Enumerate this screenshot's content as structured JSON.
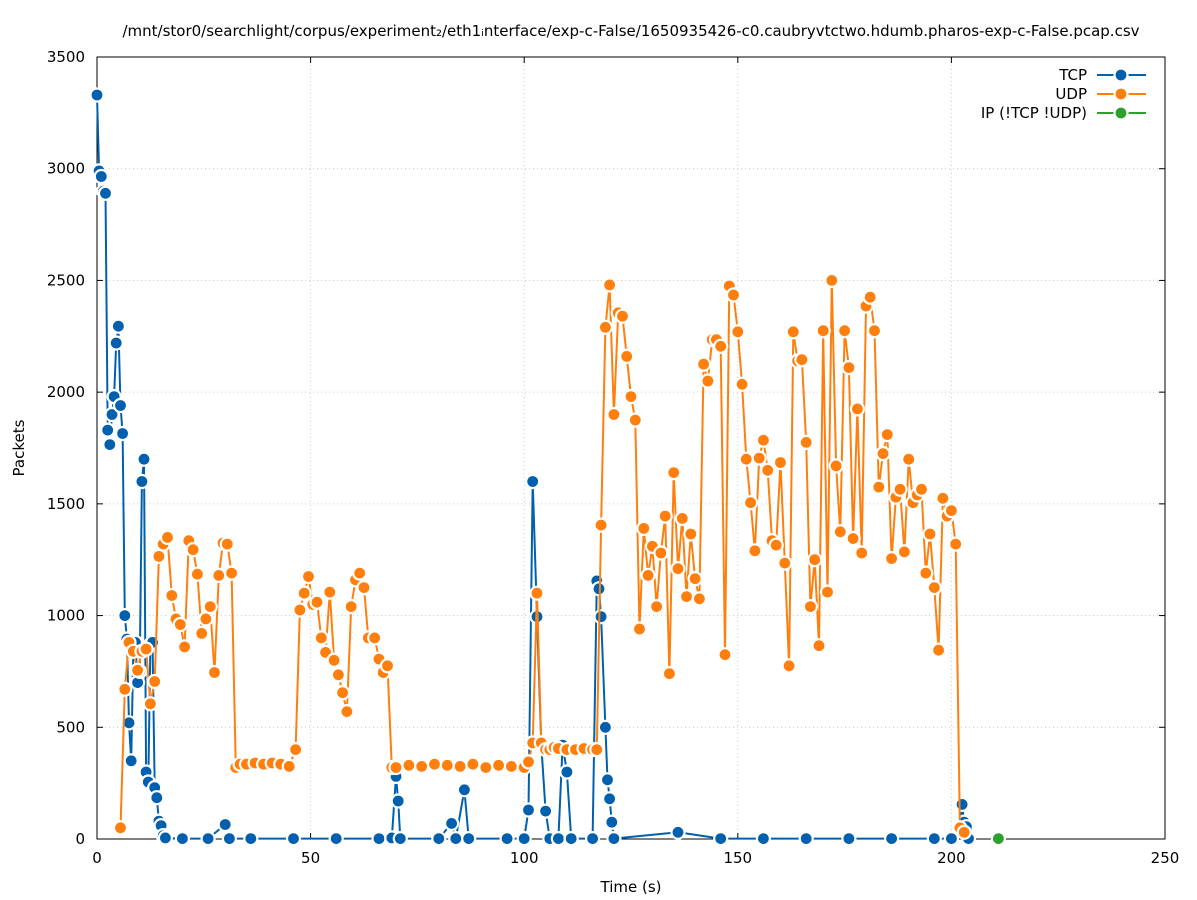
{
  "chart_data": {
    "type": "line",
    "title": "/mnt/stor0/searchlight/corpus/experiment₂/eth1ᵢnterface/exp-c-False/1650935426-c0.caubryvtctwo.hdumb.pharos-exp-c-False.pcap.csv",
    "xlabel": "Time (s)",
    "ylabel": "Packets",
    "xlim": [
      0,
      250
    ],
    "ylim": [
      0,
      3500
    ],
    "x_ticks": [
      "0",
      "50",
      "100",
      "150",
      "200",
      "250"
    ],
    "y_ticks": [
      "0",
      "500",
      "1000",
      "1500",
      "2000",
      "2500",
      "3000",
      "3500"
    ],
    "grid": true,
    "legend_position": "top-right",
    "series": [
      {
        "name": "TCP",
        "color": "#0060ad",
        "points": [
          [
            0,
            3330
          ],
          [
            0.5,
            2990
          ],
          [
            1,
            2965
          ],
          [
            1.5,
            2900
          ],
          [
            2,
            2890
          ],
          [
            2.5,
            1830
          ],
          [
            3,
            1765
          ],
          [
            3.5,
            1900
          ],
          [
            4,
            1980
          ],
          [
            4.5,
            2220
          ],
          [
            5,
            2295
          ],
          [
            5.5,
            1940
          ],
          [
            6,
            1815
          ],
          [
            6.5,
            1000
          ],
          [
            7,
            895
          ],
          [
            7.5,
            520
          ],
          [
            8,
            350
          ],
          [
            8.5,
            840
          ],
          [
            9,
            880
          ],
          [
            9.5,
            700
          ],
          [
            10,
            750
          ],
          [
            10.5,
            1600
          ],
          [
            11,
            1700
          ],
          [
            11.5,
            300
          ],
          [
            12,
            255
          ],
          [
            12.5,
            870
          ],
          [
            13,
            880
          ],
          [
            13.5,
            230
          ],
          [
            14,
            185
          ],
          [
            14.5,
            80
          ],
          [
            15,
            60
          ],
          [
            15.5,
            15
          ],
          [
            16,
            5
          ],
          [
            20,
            2
          ],
          [
            26,
            2
          ],
          [
            30,
            65
          ],
          [
            31,
            2
          ],
          [
            36,
            2
          ],
          [
            46,
            2
          ],
          [
            56,
            2
          ],
          [
            66,
            2
          ],
          [
            69,
            5
          ],
          [
            70,
            280
          ],
          [
            70.5,
            170
          ],
          [
            71,
            2
          ],
          [
            80,
            2
          ],
          [
            83,
            70
          ],
          [
            84,
            2
          ],
          [
            86,
            220
          ],
          [
            87,
            2
          ],
          [
            96,
            2
          ],
          [
            100,
            2
          ],
          [
            101,
            130
          ],
          [
            102,
            1600
          ],
          [
            103,
            995
          ],
          [
            104,
            420
          ],
          [
            105,
            125
          ],
          [
            106,
            2
          ],
          [
            108,
            2
          ],
          [
            109,
            420
          ],
          [
            110,
            300
          ],
          [
            111,
            2
          ],
          [
            116,
            2
          ],
          [
            117,
            1155
          ],
          [
            117.5,
            1120
          ],
          [
            118,
            995
          ],
          [
            119,
            500
          ],
          [
            119.5,
            265
          ],
          [
            120,
            180
          ],
          [
            120.5,
            75
          ],
          [
            121,
            2
          ],
          [
            136,
            30
          ],
          [
            146,
            2
          ],
          [
            156,
            2
          ],
          [
            166,
            2
          ],
          [
            176,
            2
          ],
          [
            186,
            2
          ],
          [
            196,
            2
          ],
          [
            200,
            2
          ],
          [
            202,
            50
          ],
          [
            202.5,
            155
          ],
          [
            203,
            75
          ],
          [
            203.5,
            55
          ],
          [
            204,
            2
          ]
        ]
      },
      {
        "name": "UDP",
        "color": "#ff7f0e",
        "points": [
          [
            5.5,
            50
          ],
          [
            6.5,
            670
          ],
          [
            7.5,
            880
          ],
          [
            8.5,
            840
          ],
          [
            9.5,
            755
          ],
          [
            10.5,
            840
          ],
          [
            11.5,
            850
          ],
          [
            12.5,
            605
          ],
          [
            13.5,
            705
          ],
          [
            14.5,
            1265
          ],
          [
            15.5,
            1320
          ],
          [
            16.5,
            1350
          ],
          [
            17.5,
            1090
          ],
          [
            18.5,
            985
          ],
          [
            19.5,
            960
          ],
          [
            20.5,
            860
          ],
          [
            21.5,
            1335
          ],
          [
            22.5,
            1295
          ],
          [
            23.5,
            1185
          ],
          [
            24.5,
            920
          ],
          [
            25.5,
            985
          ],
          [
            26.5,
            1040
          ],
          [
            27.5,
            745
          ],
          [
            28.5,
            1180
          ],
          [
            29.5,
            1325
          ],
          [
            30.5,
            1320
          ],
          [
            31.5,
            1190
          ],
          [
            32.5,
            320
          ],
          [
            33.5,
            335
          ],
          [
            35,
            335
          ],
          [
            37,
            340
          ],
          [
            39,
            335
          ],
          [
            41,
            340
          ],
          [
            43,
            335
          ],
          [
            45,
            325
          ],
          [
            46.5,
            400
          ],
          [
            47.5,
            1025
          ],
          [
            48.5,
            1100
          ],
          [
            49.5,
            1175
          ],
          [
            50.5,
            1050
          ],
          [
            51.5,
            1060
          ],
          [
            52.5,
            900
          ],
          [
            53.5,
            835
          ],
          [
            54.5,
            1105
          ],
          [
            55.5,
            800
          ],
          [
            56.5,
            735
          ],
          [
            57.5,
            655
          ],
          [
            58.5,
            570
          ],
          [
            59.5,
            1040
          ],
          [
            60.5,
            1160
          ],
          [
            61.5,
            1190
          ],
          [
            62.5,
            1125
          ],
          [
            63.5,
            900
          ],
          [
            65,
            900
          ],
          [
            66,
            805
          ],
          [
            67,
            745
          ],
          [
            68,
            775
          ],
          [
            69,
            320
          ],
          [
            70,
            320
          ],
          [
            73,
            330
          ],
          [
            76,
            325
          ],
          [
            79,
            335
          ],
          [
            82,
            330
          ],
          [
            85,
            325
          ],
          [
            88,
            335
          ],
          [
            91,
            320
          ],
          [
            94,
            330
          ],
          [
            97,
            325
          ],
          [
            100,
            320
          ],
          [
            101,
            345
          ],
          [
            102,
            430
          ],
          [
            103,
            1100
          ],
          [
            104,
            430
          ],
          [
            105,
            400
          ],
          [
            106,
            400
          ],
          [
            107,
            410
          ],
          [
            108,
            405
          ],
          [
            110,
            400
          ],
          [
            112,
            400
          ],
          [
            114,
            405
          ],
          [
            116,
            400
          ],
          [
            117,
            400
          ],
          [
            118,
            1405
          ],
          [
            119,
            2290
          ],
          [
            120,
            2480
          ],
          [
            121,
            1900
          ],
          [
            122,
            2355
          ],
          [
            123,
            2340
          ],
          [
            124,
            2160
          ],
          [
            125,
            1980
          ],
          [
            126,
            1875
          ],
          [
            127,
            940
          ],
          [
            128,
            1390
          ],
          [
            129,
            1180
          ],
          [
            130,
            1310
          ],
          [
            131,
            1040
          ],
          [
            132,
            1280
          ],
          [
            133,
            1445
          ],
          [
            134,
            740
          ],
          [
            135,
            1640
          ],
          [
            136,
            1210
          ],
          [
            137,
            1435
          ],
          [
            138,
            1085
          ],
          [
            139,
            1365
          ],
          [
            140,
            1165
          ],
          [
            141,
            1075
          ],
          [
            142,
            2125
          ],
          [
            143,
            2050
          ],
          [
            144,
            2235
          ],
          [
            145,
            2235
          ],
          [
            146,
            2205
          ],
          [
            147,
            825
          ],
          [
            148,
            2475
          ],
          [
            149,
            2435
          ],
          [
            150,
            2270
          ],
          [
            151,
            2035
          ],
          [
            152,
            1700
          ],
          [
            153,
            1505
          ],
          [
            154,
            1290
          ],
          [
            155,
            1705
          ],
          [
            156,
            1785
          ],
          [
            157,
            1650
          ],
          [
            158,
            1335
          ],
          [
            159,
            1315
          ],
          [
            160,
            1685
          ],
          [
            161,
            1235
          ],
          [
            162,
            775
          ],
          [
            163,
            2270
          ],
          [
            164,
            2140
          ],
          [
            165,
            2145
          ],
          [
            166,
            1775
          ],
          [
            167,
            1040
          ],
          [
            168,
            1250
          ],
          [
            169,
            865
          ],
          [
            170,
            2275
          ],
          [
            171,
            1105
          ],
          [
            172,
            2500
          ],
          [
            173,
            1670
          ],
          [
            174,
            1375
          ],
          [
            175,
            2275
          ],
          [
            176,
            2110
          ],
          [
            177,
            1345
          ],
          [
            178,
            1925
          ],
          [
            179,
            1280
          ],
          [
            180,
            2385
          ],
          [
            181,
            2425
          ],
          [
            182,
            2275
          ],
          [
            183,
            1575
          ],
          [
            184,
            1725
          ],
          [
            185,
            1810
          ],
          [
            186,
            1255
          ],
          [
            187,
            1530
          ],
          [
            188,
            1565
          ],
          [
            189,
            1285
          ],
          [
            190,
            1700
          ],
          [
            191,
            1505
          ],
          [
            192,
            1540
          ],
          [
            193,
            1565
          ],
          [
            194,
            1190
          ],
          [
            195,
            1365
          ],
          [
            196,
            1125
          ],
          [
            197,
            845
          ],
          [
            198,
            1525
          ],
          [
            199,
            1445
          ],
          [
            200,
            1470
          ],
          [
            201,
            1320
          ],
          [
            202,
            50
          ],
          [
            203,
            30
          ]
        ]
      },
      {
        "name": "IP (!TCP  !UDP)",
        "color": "#2ca02c",
        "points": [
          [
            211,
            2
          ]
        ]
      }
    ]
  }
}
